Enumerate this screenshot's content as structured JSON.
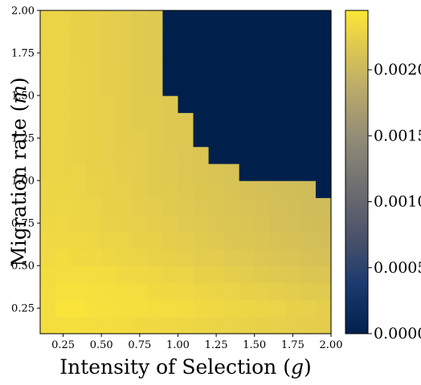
{
  "chart_data": {
    "type": "heatmap",
    "title": "",
    "xlabel": "Intensity of Selection (g)",
    "ylabel": "Migration rate (m)",
    "x_ticks": [
      "0.25",
      "0.50",
      "0.75",
      "1.00",
      "1.25",
      "1.50",
      "1.75",
      "2.00"
    ],
    "y_ticks": [
      "0.25",
      "0.50",
      "0.75",
      "1.00",
      "1.25",
      "1.50",
      "1.75",
      "2.00"
    ],
    "colorbar_ticks": [
      "0.0000",
      "0.0005",
      "0.0010",
      "0.0015",
      "0.0020"
    ],
    "xlim": [
      0.1,
      2.0
    ],
    "ylim": [
      0.1,
      2.0
    ],
    "colorbar_range": [
      0.0,
      0.00245
    ],
    "colormap": "cividis",
    "grid": false,
    "cell_size": 0.1,
    "x_centers": [
      0.15,
      0.25,
      0.35,
      0.45,
      0.55,
      0.65,
      0.75,
      0.85,
      0.95,
      1.05,
      1.15,
      1.25,
      1.35,
      1.45,
      1.55,
      1.65,
      1.75,
      1.85,
      1.95
    ],
    "y_centers": [
      0.15,
      0.25,
      0.35,
      0.45,
      0.55,
      0.65,
      0.75,
      0.85,
      0.95,
      1.05,
      1.15,
      1.25,
      1.35,
      1.45,
      1.55,
      1.65,
      1.75,
      1.85,
      1.95
    ],
    "values": [
      [
        0.00236,
        0.00238,
        0.00238,
        0.00237,
        0.00236,
        0.00235,
        0.00234,
        0.00233,
        0.00232,
        0.00231,
        0.0023,
        0.00229,
        0.00228,
        0.00227,
        0.00226,
        0.00225,
        0.00224,
        0.00223,
        0.00222
      ],
      [
        0.00237,
        0.00242,
        0.00242,
        0.0024,
        0.00239,
        0.00238,
        0.00238,
        0.00237,
        0.00236,
        0.00235,
        0.00234,
        0.00232,
        0.00231,
        0.0023,
        0.00229,
        0.00228,
        0.00226,
        0.00225,
        0.00223
      ],
      [
        0.00236,
        0.0024,
        0.0024,
        0.00239,
        0.00238,
        0.00237,
        0.00236,
        0.00234,
        0.00233,
        0.00232,
        0.0023,
        0.00229,
        0.00228,
        0.00226,
        0.00225,
        0.00223,
        0.00222,
        0.0022,
        0.00219
      ],
      [
        0.00235,
        0.00237,
        0.00237,
        0.00236,
        0.00235,
        0.00233,
        0.00232,
        0.00231,
        0.00229,
        0.00228,
        0.00226,
        0.00225,
        0.00223,
        0.00222,
        0.0022,
        0.00218,
        0.00217,
        0.00215,
        0.00214
      ],
      [
        0.00233,
        0.00235,
        0.00234,
        0.00233,
        0.00231,
        0.0023,
        0.00229,
        0.00227,
        0.00226,
        0.00224,
        0.00222,
        0.00221,
        0.00219,
        0.00218,
        0.00216,
        0.00214,
        0.00213,
        0.00211,
        0.0021
      ],
      [
        0.00232,
        0.00233,
        0.00232,
        0.00231,
        0.00229,
        0.00228,
        0.00226,
        0.00225,
        0.00223,
        0.00221,
        0.0022,
        0.00218,
        0.00216,
        0.00215,
        0.00213,
        0.00211,
        0.0021,
        0.00208,
        0.00207
      ],
      [
        0.00231,
        0.00232,
        0.0023,
        0.00229,
        0.00227,
        0.00226,
        0.00224,
        0.00223,
        0.00221,
        0.00219,
        0.00218,
        0.00216,
        0.00214,
        0.00213,
        0.00211,
        0.00209,
        0.00208,
        0.00206,
        0.00205
      ],
      [
        0.0023,
        0.00231,
        0.00229,
        0.00228,
        0.00226,
        0.00225,
        0.00223,
        0.00221,
        0.0022,
        0.00218,
        0.00216,
        0.00215,
        0.00213,
        0.00211,
        0.0021,
        0.00208,
        0.00207,
        0.00205,
        0.00204
      ],
      [
        0.0023,
        0.0023,
        0.00228,
        0.00227,
        0.00225,
        0.00224,
        0.00222,
        0.0022,
        0.00219,
        0.00217,
        0.00215,
        0.00214,
        0.00212,
        0.0021,
        0.00209,
        0.00207,
        0.00206,
        0.00204,
        0
      ],
      [
        0.00229,
        0.00229,
        0.00228,
        0.00226,
        0.00225,
        0.00223,
        0.00221,
        0.0022,
        0.00218,
        0.00216,
        0.00215,
        0.00213,
        0.00211,
        0,
        0,
        0,
        0,
        0,
        0
      ],
      [
        0.00229,
        0.00229,
        0.00227,
        0.00226,
        0.00224,
        0.00223,
        0.00221,
        0.00219,
        0.00218,
        0.00216,
        0.00214,
        0,
        0,
        0,
        0,
        0,
        0,
        0,
        0
      ],
      [
        0.00229,
        0.00229,
        0.00227,
        0.00226,
        0.00224,
        0.00222,
        0.00221,
        0.00219,
        0.00217,
        0.00216,
        0,
        0,
        0,
        0,
        0,
        0,
        0,
        0,
        0
      ],
      [
        0.00229,
        0.00228,
        0.00227,
        0.00225,
        0.00224,
        0.00222,
        0.0022,
        0.00219,
        0.00217,
        0.00216,
        0,
        0,
        0,
        0,
        0,
        0,
        0,
        0,
        0
      ],
      [
        0.00229,
        0.00228,
        0.00227,
        0.00225,
        0.00224,
        0.00222,
        0.0022,
        0.00219,
        0.00217,
        0,
        0,
        0,
        0,
        0,
        0,
        0,
        0,
        0,
        0
      ],
      [
        0.00229,
        0.00228,
        0.00227,
        0.00225,
        0.00223,
        0.00222,
        0.0022,
        0.00218,
        0,
        0,
        0,
        0,
        0,
        0,
        0,
        0,
        0,
        0,
        0
      ],
      [
        0.00229,
        0.00228,
        0.00227,
        0.00225,
        0.00223,
        0.00222,
        0.0022,
        0.00218,
        0,
        0,
        0,
        0,
        0,
        0,
        0,
        0,
        0,
        0,
        0
      ],
      [
        0.00229,
        0.00228,
        0.00226,
        0.00225,
        0.00223,
        0.00221,
        0.0022,
        0.00218,
        0,
        0,
        0,
        0,
        0,
        0,
        0,
        0,
        0,
        0,
        0
      ],
      [
        0.00229,
        0.00228,
        0.00226,
        0.00225,
        0.00223,
        0.00221,
        0.0022,
        0.00218,
        0,
        0,
        0,
        0,
        0,
        0,
        0,
        0,
        0,
        0,
        0
      ],
      [
        0.00229,
        0.00228,
        0.00226,
        0.00225,
        0.00223,
        0.00221,
        0.0022,
        0.00218,
        0,
        0,
        0,
        0,
        0,
        0,
        0,
        0,
        0,
        0,
        0
      ]
    ]
  }
}
